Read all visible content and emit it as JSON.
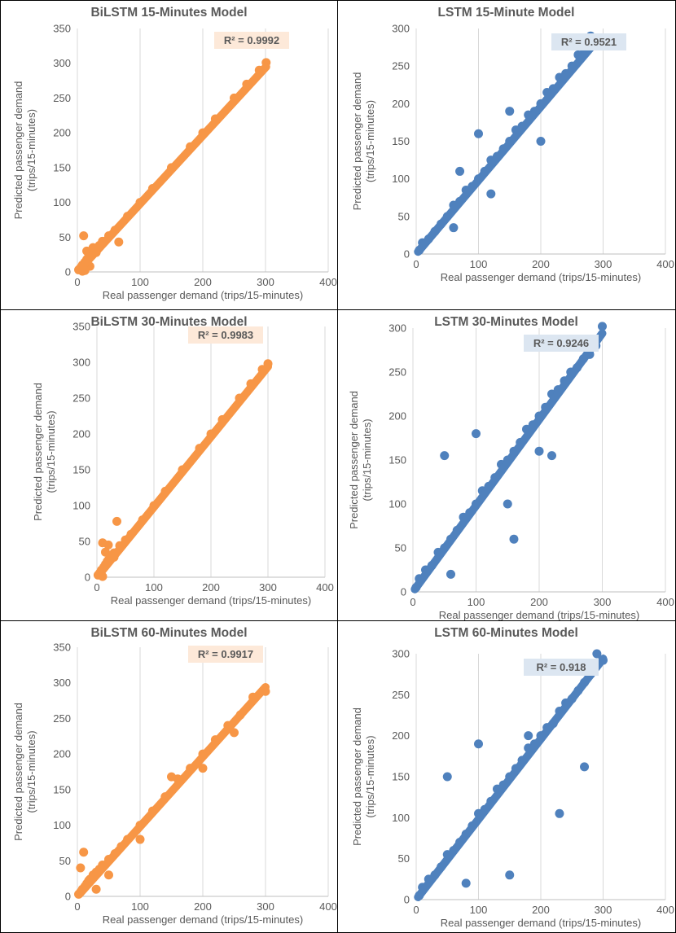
{
  "chart_data": [
    {
      "type": "scatter",
      "title": "BiLSTM 15-Minutes Model",
      "xlabel": "Real passenger demand (trips/15-minutes)",
      "ylabel": [
        "Predicted passenger demand",
        "(trips/15-minutes)"
      ],
      "xlim": [
        0,
        400
      ],
      "ylim": [
        0,
        350
      ],
      "xticks": [
        0,
        100,
        200,
        300,
        400
      ],
      "yticks": [
        0,
        50,
        100,
        150,
        200,
        250,
        300,
        350
      ],
      "grid": "vertical",
      "r2_label": "R² = 0.9992",
      "r2": 0.9992,
      "color": "#f79646",
      "r2_box_color": "#fde9d9",
      "series": [
        {
          "x": [
            2,
            5,
            8,
            10,
            12,
            15,
            18,
            20,
            25,
            30,
            35,
            40,
            50,
            60,
            66,
            80,
            100,
            120,
            150,
            180,
            200,
            220,
            250,
            270,
            290,
            301,
            8,
            12,
            15,
            20,
            25,
            30
          ],
          "y": [
            3,
            6,
            10,
            52,
            14,
            18,
            22,
            24,
            30,
            34,
            38,
            44,
            52,
            60,
            43,
            80,
            100,
            120,
            150,
            180,
            200,
            220,
            250,
            270,
            290,
            301,
            1,
            2,
            30,
            8,
            35,
            28
          ]
        }
      ]
    },
    {
      "type": "scatter",
      "title": "LSTM 15-Minute Model",
      "xlabel": "Real passenger demand (trips/15-minutes)",
      "ylabel": [
        "Predicted passenger demand",
        "(trips/15-minutes)"
      ],
      "xlim": [
        0,
        400
      ],
      "ylim": [
        0,
        300
      ],
      "xticks": [
        0,
        100,
        200,
        300,
        400
      ],
      "yticks": [
        0,
        50,
        100,
        150,
        200,
        250,
        300
      ],
      "grid": "vertical",
      "r2_label": "R² = 0.9521",
      "r2": 0.9521,
      "color": "#4f81bd",
      "r2_box_color": "#dce6f1",
      "series": [
        {
          "x": [
            5,
            10,
            20,
            30,
            40,
            50,
            60,
            70,
            80,
            90,
            100,
            110,
            120,
            130,
            140,
            150,
            160,
            170,
            180,
            190,
            200,
            210,
            220,
            230,
            240,
            250,
            260,
            270,
            280,
            290,
            70,
            120,
            150,
            100,
            200,
            60
          ],
          "y": [
            5,
            15,
            20,
            30,
            40,
            50,
            65,
            70,
            85,
            90,
            100,
            110,
            125,
            130,
            140,
            150,
            165,
            170,
            185,
            190,
            200,
            215,
            220,
            235,
            240,
            250,
            265,
            270,
            290,
            282,
            110,
            80,
            190,
            160,
            150,
            35
          ]
        }
      ]
    },
    {
      "type": "scatter",
      "title": "BiLSTM 30-Minutes Model",
      "xlabel": "Real passenger demand (trips/15-minutes)",
      "ylabel": [
        "Predicted passenger demand",
        "(trips/15-minutes)"
      ],
      "xlim": [
        0,
        400
      ],
      "ylim": [
        0,
        350
      ],
      "xticks": [
        0,
        100,
        200,
        300,
        400
      ],
      "yticks": [
        0,
        50,
        100,
        150,
        200,
        250,
        300,
        350
      ],
      "grid": "vertical",
      "r2_label": "R² = 0.9983",
      "r2": 0.9983,
      "color": "#f79646",
      "r2_box_color": "#fde9d9",
      "series": [
        {
          "x": [
            2,
            5,
            8,
            10,
            12,
            15,
            18,
            20,
            25,
            30,
            35,
            40,
            50,
            60,
            80,
            100,
            120,
            150,
            180,
            200,
            220,
            250,
            270,
            290,
            300,
            10,
            20,
            30,
            15
          ],
          "y": [
            3,
            6,
            10,
            48,
            14,
            18,
            22,
            24,
            30,
            34,
            78,
            44,
            52,
            60,
            80,
            100,
            120,
            150,
            180,
            200,
            220,
            250,
            270,
            290,
            298,
            1,
            45,
            28,
            35
          ]
        }
      ]
    },
    {
      "type": "scatter",
      "title": "LSTM 30-Minutes Model",
      "xlabel": "Real passenger demand (trips/15-minutes)",
      "ylabel": [
        "Predicted passenger demand",
        "(trips/15-minutes)"
      ],
      "xlim": [
        0,
        400
      ],
      "ylim": [
        0,
        300
      ],
      "xticks": [
        0,
        100,
        200,
        300,
        400
      ],
      "yticks": [
        0,
        50,
        100,
        150,
        200,
        250,
        300
      ],
      "grid": "vertical",
      "r2_label": "R² = 0.9246",
      "r2": 0.9246,
      "color": "#4f81bd",
      "r2_box_color": "#dce6f1",
      "series": [
        {
          "x": [
            5,
            10,
            20,
            30,
            40,
            50,
            60,
            70,
            80,
            90,
            100,
            110,
            120,
            130,
            140,
            150,
            160,
            170,
            180,
            190,
            200,
            210,
            220,
            230,
            240,
            250,
            260,
            270,
            280,
            290,
            300,
            60,
            50,
            150,
            100,
            200,
            220,
            160
          ],
          "y": [
            5,
            15,
            25,
            30,
            45,
            50,
            60,
            70,
            85,
            90,
            100,
            115,
            120,
            130,
            145,
            150,
            160,
            170,
            185,
            190,
            200,
            210,
            225,
            230,
            240,
            250,
            255,
            265,
            270,
            280,
            302,
            20,
            155,
            100,
            180,
            160,
            155,
            60
          ]
        }
      ]
    },
    {
      "type": "scatter",
      "title": "BiLSTM 60-Minutes Model",
      "xlabel": "Real passenger demand (trips/15-minutes)",
      "ylabel": [
        "Predicted passenger demand",
        "(trips/15-minutes)"
      ],
      "xlim": [
        0,
        400
      ],
      "ylim": [
        0,
        350
      ],
      "xticks": [
        0,
        100,
        200,
        300,
        400
      ],
      "yticks": [
        0,
        50,
        100,
        150,
        200,
        250,
        300,
        350
      ],
      "grid": "vertical",
      "r2_label": "R² = 0.9917",
      "r2": 0.9917,
      "color": "#f79646",
      "r2_box_color": "#fde9d9",
      "series": [
        {
          "x": [
            2,
            5,
            8,
            10,
            12,
            15,
            18,
            20,
            25,
            30,
            35,
            40,
            50,
            60,
            70,
            80,
            100,
            120,
            140,
            160,
            180,
            200,
            220,
            240,
            260,
            280,
            300,
            5,
            30,
            50,
            100,
            150,
            200,
            250
          ],
          "y": [
            3,
            6,
            10,
            62,
            14,
            18,
            22,
            24,
            30,
            34,
            38,
            44,
            52,
            60,
            70,
            80,
            100,
            120,
            140,
            165,
            180,
            200,
            220,
            240,
            255,
            280,
            288,
            40,
            10,
            30,
            80,
            168,
            180,
            230
          ]
        }
      ]
    },
    {
      "type": "scatter",
      "title": "LSTM 60-Minutes Model",
      "xlabel": "Real passenger demand (trips/15-minutes)",
      "ylabel": [
        "Predicted passenger demand",
        "(trips/15-minutes)"
      ],
      "xlim": [
        0,
        400
      ],
      "ylim": [
        0,
        300
      ],
      "xticks": [
        0,
        100,
        200,
        300,
        400
      ],
      "yticks": [
        0,
        50,
        100,
        150,
        200,
        250,
        300
      ],
      "grid": "vertical",
      "r2_label": "R² = 0.918",
      "r2": 0.918,
      "color": "#4f81bd",
      "r2_box_color": "#dce6f1",
      "series": [
        {
          "x": [
            5,
            10,
            20,
            30,
            40,
            50,
            60,
            70,
            80,
            90,
            100,
            110,
            120,
            130,
            140,
            150,
            160,
            170,
            180,
            190,
            200,
            210,
            220,
            230,
            240,
            250,
            260,
            270,
            280,
            290,
            300,
            50,
            100,
            150,
            230,
            80,
            180,
            270
          ],
          "y": [
            5,
            15,
            25,
            30,
            40,
            55,
            60,
            70,
            80,
            90,
            105,
            110,
            120,
            135,
            140,
            150,
            160,
            170,
            185,
            190,
            200,
            210,
            215,
            230,
            240,
            245,
            255,
            265,
            275,
            300,
            292,
            150,
            190,
            30,
            105,
            20,
            200,
            162
          ]
        }
      ]
    }
  ]
}
